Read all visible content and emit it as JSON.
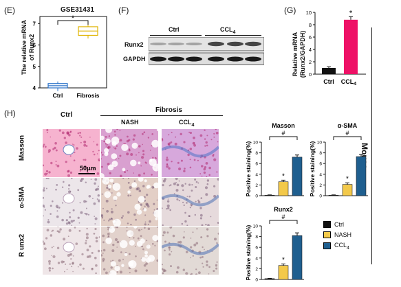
{
  "panels": {
    "E": {
      "letter": "(E)",
      "title": "GSE31431",
      "ylabel_lines": [
        "The relative mRNA",
        "of Runx2"
      ],
      "sig": "*",
      "chart_data": {
        "type": "box",
        "categories": [
          "Ctrl",
          "Fibrosis"
        ],
        "ylim": [
          4,
          7.2
        ],
        "yticks": [
          "4",
          "5",
          "6",
          "7"
        ],
        "boxes": [
          {
            "name": "Ctrl",
            "min": 3.85,
            "q1": 4.0,
            "median": 4.1,
            "q3": 4.2,
            "max": 4.3,
            "color": "#2a72c8"
          },
          {
            "name": "Fibrosis",
            "min": 6.3,
            "q1": 6.45,
            "median": 6.65,
            "q3": 6.85,
            "max": 7.0,
            "color": "#e0b400"
          }
        ]
      }
    },
    "F": {
      "letter": "(F)",
      "group_labels": [
        "Ctrl",
        "CCL4"
      ],
      "row_labels": [
        "Runx2",
        "GAPDH"
      ]
    },
    "G": {
      "letter": "(G)",
      "ylabel_lines": [
        "Relative mRNA",
        "(Runx2/GAPDH)"
      ],
      "sig": "*",
      "chart_data": {
        "type": "bar",
        "categories": [
          "Ctrl",
          "CCL4"
        ],
        "values": [
          1.0,
          8.8
        ],
        "errors": [
          0.2,
          0.5
        ],
        "colors": [
          "#111111",
          "#ee1166"
        ],
        "ylim": [
          0,
          10
        ],
        "yticks": [
          "0",
          "2",
          "4",
          "6",
          "8",
          "10"
        ]
      }
    },
    "H": {
      "letter": "(H)",
      "col_header_ctrl": "Ctrl",
      "col_header_fibrosis": "Fibrosis",
      "col_nash": "NASH",
      "col_ccl4": "CCL4",
      "row_labels": [
        "Masson",
        "α-SMA",
        "R unx2"
      ],
      "scale_bar": "50μm"
    }
  },
  "side_label": "Mouse",
  "bar_charts": [
    {
      "title": "Masson",
      "ylabel": "Positive staining(%)",
      "chart_data": {
        "type": "bar",
        "categories": [
          "Ctrl",
          "NASH",
          "CCL4"
        ],
        "values": [
          0.1,
          2.6,
          7.2
        ],
        "errors": [
          0.05,
          0.3,
          0.4
        ],
        "ylim": [
          0,
          10
        ],
        "yticks": [
          "0",
          "2",
          "4",
          "6",
          "8",
          "10"
        ],
        "sig_star": "*",
        "sig_hash": "#"
      }
    },
    {
      "title": "α-SMA",
      "ylabel": "Positive staining(%)",
      "chart_data": {
        "type": "bar",
        "categories": [
          "Ctrl",
          "NASH",
          "CCL4"
        ],
        "values": [
          0.1,
          2.1,
          7.3
        ],
        "errors": [
          0.05,
          0.3,
          0.4
        ],
        "ylim": [
          0,
          10
        ],
        "yticks": [
          "0",
          "2",
          "4",
          "6",
          "8",
          "10"
        ],
        "sig_star": "*",
        "sig_hash": "#"
      }
    },
    {
      "title": "Runx2",
      "ylabel": "Positive staining(%)",
      "chart_data": {
        "type": "bar",
        "categories": [
          "Ctrl",
          "NASH",
          "CCL4"
        ],
        "values": [
          0.15,
          2.6,
          8.2
        ],
        "errors": [
          0.05,
          0.3,
          0.5
        ],
        "ylim": [
          0,
          10
        ],
        "yticks": [
          "0",
          "2",
          "4",
          "6",
          "8",
          "10"
        ],
        "sig_star": "*",
        "sig_hash": "#"
      }
    }
  ],
  "legend": {
    "items": [
      {
        "label": "Ctrl",
        "color": "#111111"
      },
      {
        "label": "NASH",
        "color": "#f3c94a"
      },
      {
        "label": "CCL4",
        "color": "#1f5f8f"
      }
    ]
  },
  "colors": {
    "ctrl": "#111111",
    "nash": "#f3c94a",
    "ccl4": "#1f5f8f",
    "pink": "#ee1166"
  }
}
